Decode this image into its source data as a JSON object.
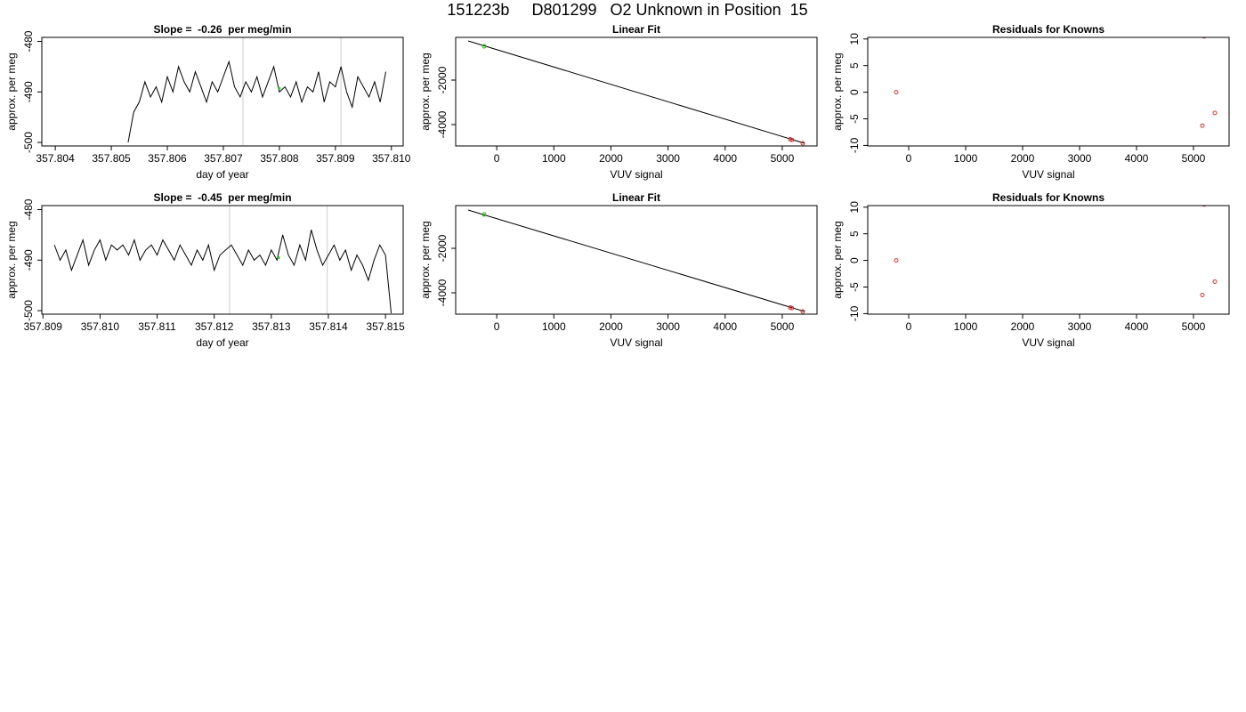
{
  "title": "151223b     D801299   O2 Unknown in Position  15",
  "chart_data": [
    {
      "type": "line",
      "title": "Slope =  -0.26  per meg/min",
      "xlabel": "day of year",
      "ylabel": "approx. per meg",
      "x": [
        357.8053,
        357.8054,
        357.8055,
        357.8056,
        357.8057,
        357.8058,
        357.8059,
        357.806,
        357.8061,
        357.8062,
        357.8063,
        357.8064,
        357.8065,
        357.8066,
        357.8067,
        357.8068,
        357.8069,
        357.807,
        357.8071,
        357.8072,
        357.8073,
        357.8074,
        357.8075,
        357.8076,
        357.8077,
        357.8078,
        357.8079,
        357.808,
        357.8081,
        357.8082,
        357.8083,
        357.8084,
        357.8085,
        357.8086,
        357.8087,
        357.8088,
        357.8089,
        357.809,
        357.8091,
        357.8092,
        357.8093,
        357.8094,
        357.8095,
        357.8096,
        357.8097,
        357.8098,
        357.8099
      ],
      "values": [
        -500,
        -494,
        -492,
        -488,
        -491,
        -489,
        -492,
        -487,
        -490,
        -485,
        -488,
        -490,
        -486,
        -489,
        -492,
        -488,
        -490,
        -487,
        -484,
        -489,
        -491,
        -488,
        -490,
        -487,
        -491,
        -488,
        -485,
        -490,
        -489,
        -491,
        -488,
        -492,
        -489,
        -490,
        -486,
        -492,
        -488,
        -489,
        -485,
        -490,
        -493,
        -487,
        -489,
        -491,
        -488,
        -492,
        -486
      ],
      "color": "#000000",
      "xlim": [
        357.80376,
        357.81021
      ],
      "ylim": [
        -500.7,
        -479.2
      ],
      "xticks": [
        357.804,
        357.805,
        357.806,
        357.807,
        357.808,
        357.809,
        {
          "value": 357.81,
          "label": "357.810"
        }
      ],
      "yticks": [
        -500,
        -490,
        -480
      ],
      "vlines": [
        357.80735,
        357.8091
      ],
      "vline_color": "#cccccc",
      "highlight": {
        "x": 357.808,
        "y": -489.3,
        "color": "#22cc22"
      }
    },
    {
      "type": "scatter",
      "title": "Linear Fit",
      "xlabel": "VUV signal",
      "ylabel": "approx. per meg",
      "series": [
        {
          "color": "#cc3333",
          "x": [
            -220,
            5140,
            5170,
            5360
          ],
          "values": [
            -480,
            -4660,
            -4690,
            -4840
          ]
        },
        {
          "color": "#22cc22",
          "x": [
            -220
          ],
          "values": [
            -480
          ]
        }
      ],
      "fit_line": {
        "x": [
          -500,
          5390
        ],
        "y": [
          -240,
          -4840
        ],
        "color": "#000000"
      },
      "xlim": [
        -719,
        5609
      ],
      "ylim": [
        -4960,
        -80
      ],
      "xticks": [
        0,
        1000,
        2000,
        3000,
        4000,
        5000
      ],
      "yticks": [
        -4000,
        -2000
      ]
    },
    {
      "type": "scatter",
      "title": "Residuals for Knowns",
      "xlabel": "VUV signal",
      "ylabel": "approx. per meg",
      "series": [
        {
          "color": "#cc3333",
          "x": [
            -219,
            5188,
            5156,
            5375
          ],
          "values": [
            0,
            10.5,
            -6.3,
            -3.9
          ]
        }
      ],
      "xlim": [
        -719,
        5625
      ],
      "ylim": [
        -10.1,
        10.3
      ],
      "xticks": [
        0,
        1000,
        2000,
        3000,
        4000,
        5000
      ],
      "yticks": [
        -10,
        -5,
        0,
        5,
        10
      ]
    },
    {
      "type": "line",
      "title": "Slope =  -0.45  per meg/min",
      "xlabel": "day of year",
      "ylabel": "approx. per meg",
      "x": [
        357.8092,
        357.8093,
        357.8094,
        357.8095,
        357.8096,
        357.8097,
        357.8098,
        357.8099,
        357.81,
        357.8101,
        357.8102,
        357.8103,
        357.8104,
        357.8105,
        357.8106,
        357.8107,
        357.8108,
        357.8109,
        357.811,
        357.8111,
        357.8112,
        357.8113,
        357.8114,
        357.8115,
        357.8116,
        357.8117,
        357.8118,
        357.8119,
        357.812,
        357.8121,
        357.8122,
        357.8123,
        357.8124,
        357.8125,
        357.8126,
        357.8127,
        357.8128,
        357.8129,
        357.813,
        357.8131,
        357.8132,
        357.8133,
        357.8134,
        357.8135,
        357.8136,
        357.8137,
        357.8138,
        357.8139,
        357.814,
        357.8141,
        357.8142,
        357.8143,
        357.8144,
        357.8145,
        357.8146,
        357.8147,
        357.8148,
        357.8149,
        357.815,
        357.8151
      ],
      "values": [
        -487,
        -490,
        -488,
        -492,
        -489,
        -486,
        -491,
        -488,
        -486,
        -490,
        -487,
        -488,
        -487,
        -489,
        -486,
        -490,
        -488,
        -487,
        -489,
        -486,
        -488,
        -490,
        -487,
        -489,
        -491,
        -488,
        -490,
        -487,
        -492,
        -489,
        -488,
        -487,
        -489,
        -491,
        -488,
        -490,
        -489,
        -491,
        -488,
        -490,
        -485,
        -489,
        -491,
        -487,
        -490,
        -484,
        -488,
        -491,
        -489,
        -487,
        -490,
        -488,
        -492,
        -489,
        -491,
        -494,
        -490,
        -487,
        -489,
        -500.5
      ],
      "color": "#000000",
      "xlim": [
        357.80898,
        357.81531
      ],
      "ylim": [
        -500.7,
        -479.2
      ],
      "xticks": [
        357.809,
        {
          "value": 357.81,
          "label": "357.810"
        },
        357.811,
        357.812,
        357.813,
        357.814,
        357.815
      ],
      "yticks": [
        -500,
        -490,
        -480
      ],
      "vlines": [
        357.81227,
        357.81398
      ],
      "vline_color": "#cccccc",
      "highlight": {
        "x": 357.81313,
        "y": -489.5,
        "color": "#22cc22"
      }
    },
    {
      "type": "scatter",
      "title": "Linear Fit",
      "xlabel": "VUV signal",
      "ylabel": "approx. per meg",
      "series": [
        {
          "color": "#cc3333",
          "x": [
            -220,
            5140,
            5170,
            5360
          ],
          "values": [
            -480,
            -4660,
            -4690,
            -4840
          ]
        },
        {
          "color": "#22cc22",
          "x": [
            -220
          ],
          "values": [
            -480
          ]
        }
      ],
      "fit_line": {
        "x": [
          -500,
          5390
        ],
        "y": [
          -280,
          -4840
        ],
        "color": "#000000"
      },
      "xlim": [
        -719,
        5609
      ],
      "ylim": [
        -4960,
        -80
      ],
      "xticks": [
        0,
        1000,
        2000,
        3000,
        4000,
        5000
      ],
      "yticks": [
        -4000,
        -2000
      ]
    },
    {
      "type": "scatter",
      "title": "Residuals for Knowns",
      "xlabel": "VUV signal",
      "ylabel": "approx. per meg",
      "series": [
        {
          "color": "#cc3333",
          "x": [
            -219,
            5188,
            5156,
            5375
          ],
          "values": [
            0,
            10.5,
            -6.5,
            -4
          ]
        }
      ],
      "xlim": [
        -719,
        5625
      ],
      "ylim": [
        -10.1,
        10.3
      ],
      "xticks": [
        0,
        1000,
        2000,
        3000,
        4000,
        5000
      ],
      "yticks": [
        -10,
        -5,
        0,
        5,
        10
      ]
    }
  ]
}
